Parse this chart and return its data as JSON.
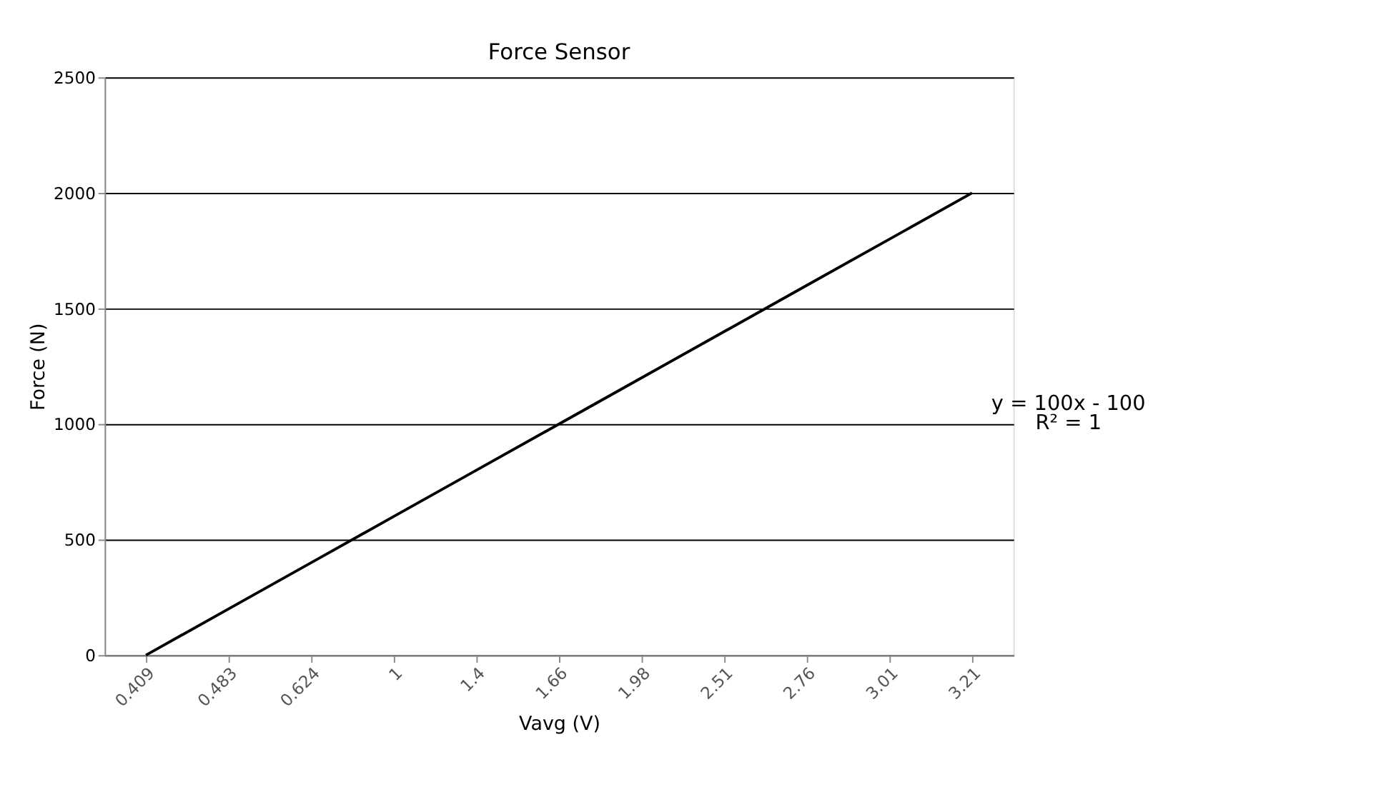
{
  "chart_data": {
    "type": "line",
    "title": "Force Sensor",
    "xlabel": "Vavg (V)",
    "ylabel": "Force (N)",
    "categories": [
      "0.409",
      "0.483",
      "0.624",
      "1",
      "1.4",
      "1.66",
      "1.98",
      "2.51",
      "2.76",
      "3.01",
      "3.21"
    ],
    "series": [
      {
        "color": "#000000",
        "values": [
          0,
          200,
          400,
          600,
          800,
          1000,
          1200,
          1400,
          1600,
          1800,
          2000
        ]
      }
    ],
    "ylim": [
      0,
      2500
    ],
    "yticks": [
      0,
      500,
      1000,
      1500,
      2000,
      2500
    ],
    "grid": "y",
    "marker": "none",
    "line_style": "solid",
    "annotations": [
      "y = 100x - 100",
      "R² = 1"
    ]
  }
}
